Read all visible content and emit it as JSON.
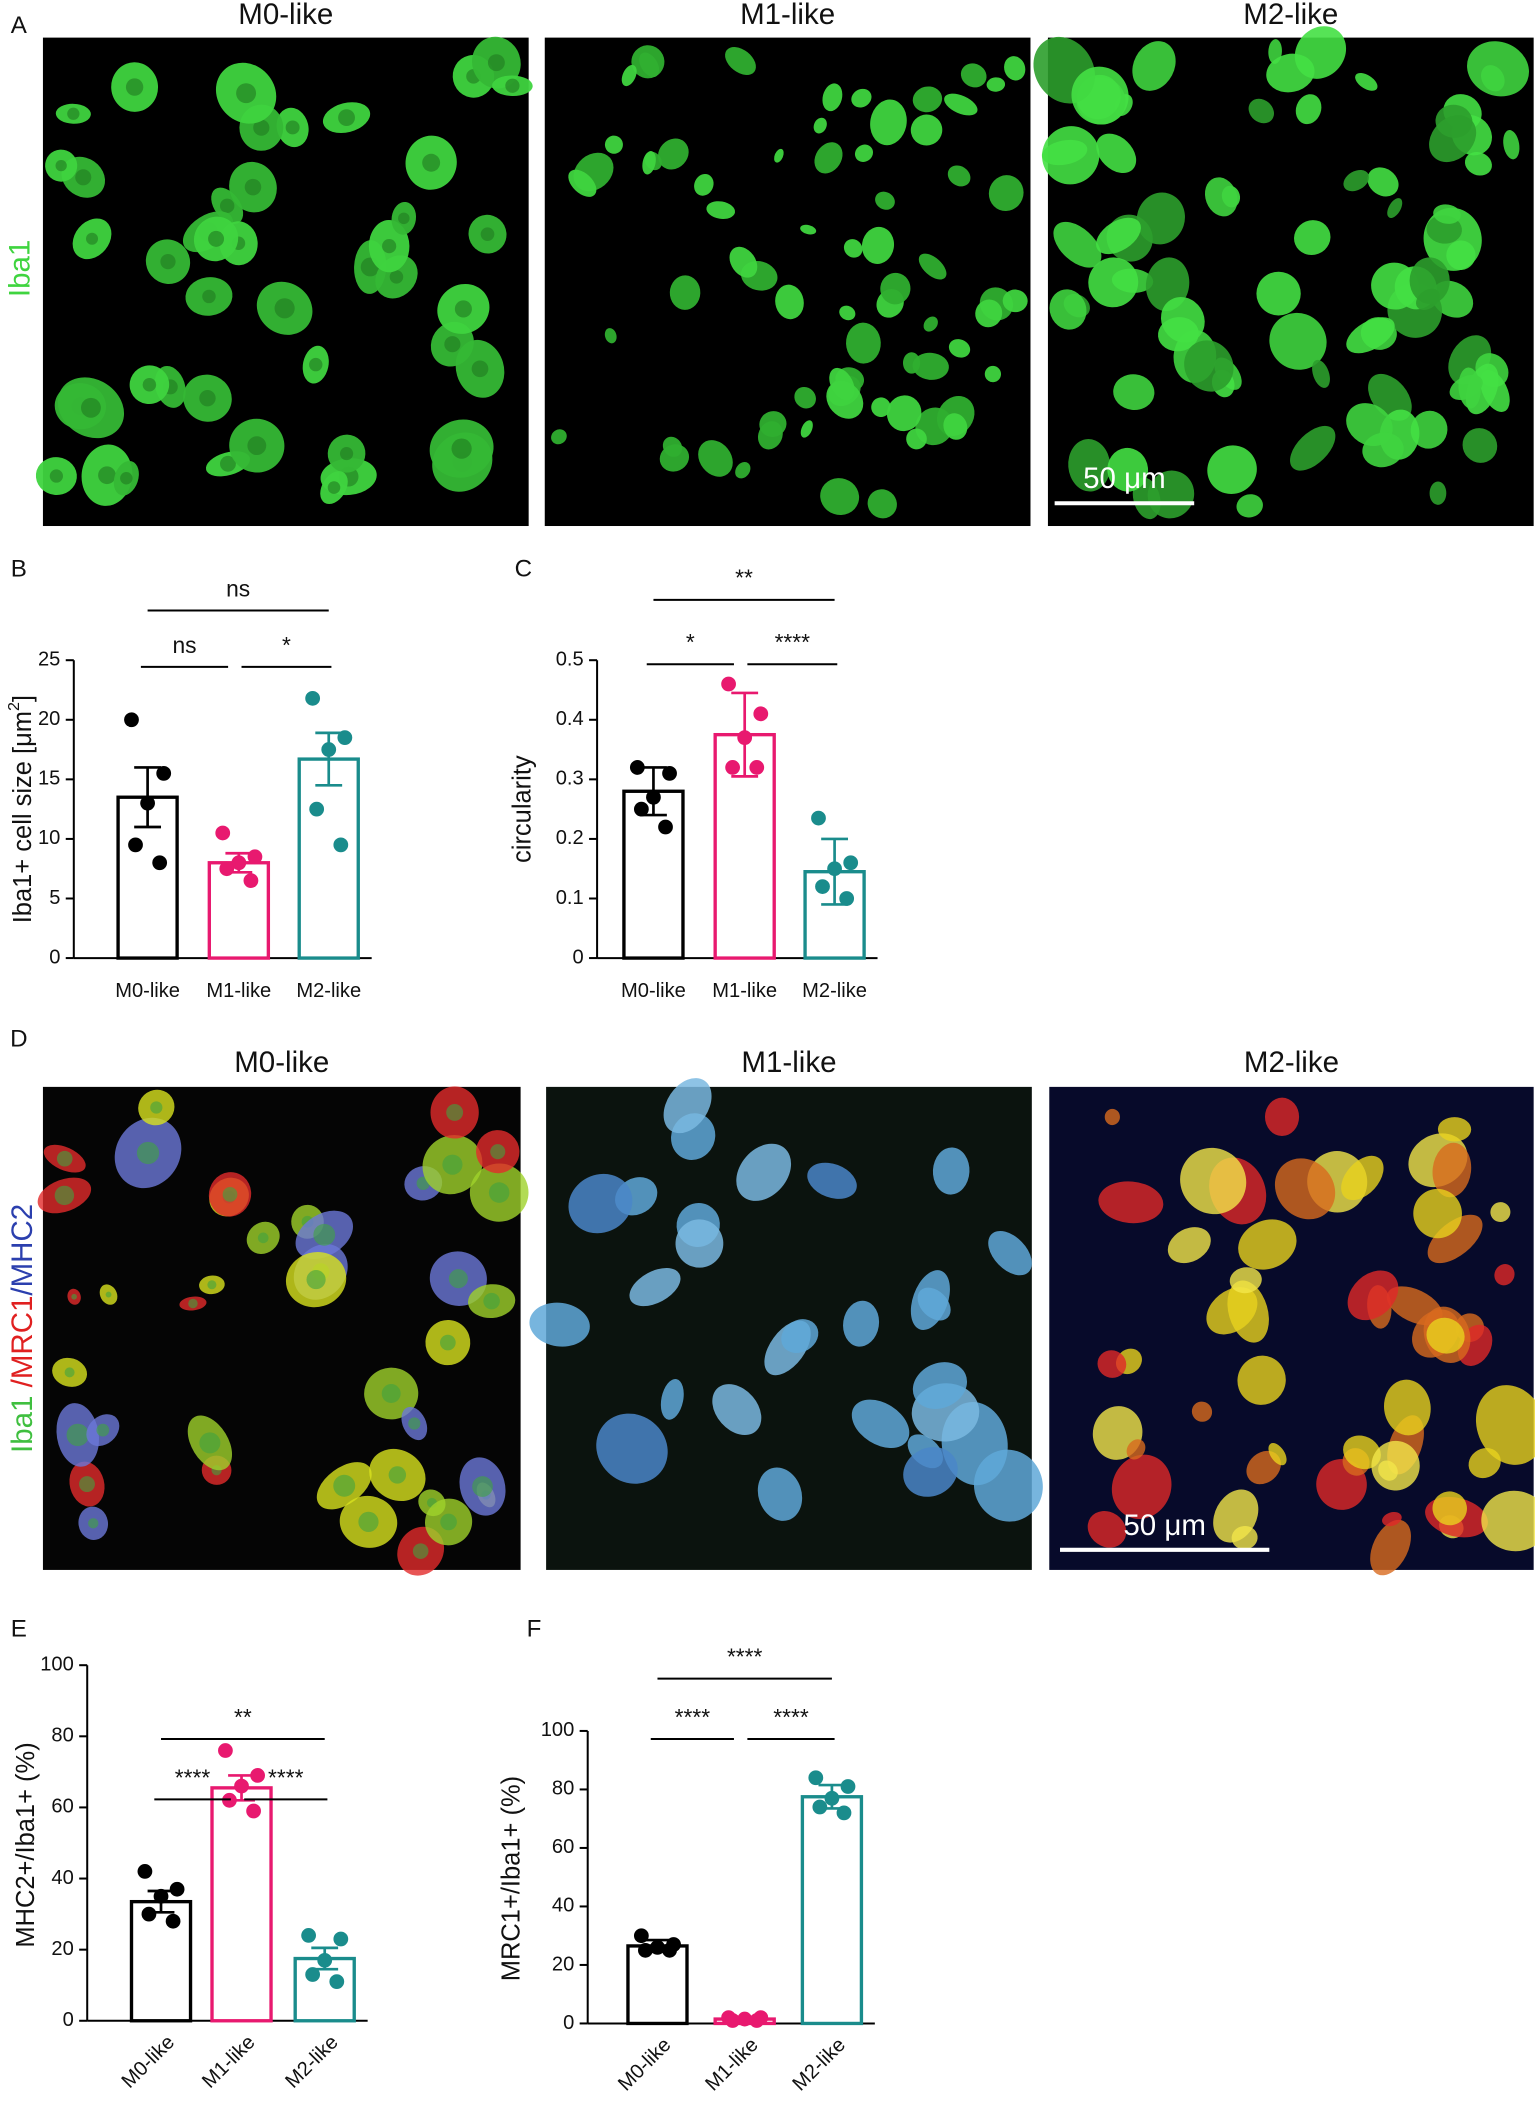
{
  "panel_labels": [
    "A",
    "B",
    "C",
    "D",
    "E",
    "F"
  ],
  "panel_a": {
    "titles": [
      "M0-like",
      "M1-like",
      "M2-like"
    ],
    "stain_label": "Iba1",
    "scale_bar": "50 μm"
  },
  "panel_d": {
    "titles": [
      "M0-like",
      "M1-like",
      "M2-like"
    ],
    "stain_label": [
      "Iba1",
      " /MRC1",
      "/MHC2"
    ],
    "scale_bar": "50 μm"
  },
  "chart_data": [
    {
      "type": "bar",
      "categories": [
        "M0-like",
        "M1-like",
        "M2-like"
      ],
      "colors": [
        "#000000",
        "#e8196f",
        "#1a8c8c"
      ],
      "values": [
        13.5,
        8,
        16.7
      ],
      "errors": [
        2.5,
        0.8,
        2.2
      ],
      "points": [
        [
          20,
          15.5,
          13,
          9.5,
          8
        ],
        [
          10.5,
          8.5,
          8,
          7.5,
          6.5
        ],
        [
          21.8,
          18.5,
          17.5,
          12.5,
          9.5
        ]
      ],
      "ylim": [
        0,
        25
      ],
      "yticks": [
        0,
        5,
        10,
        15,
        20,
        25
      ],
      "ylabel": [
        "Iba1+ cell size [μm",
        "2",
        "]"
      ],
      "annotations": [
        "ns",
        "ns",
        "*"
      ]
    },
    {
      "type": "bar",
      "categories": [
        "M0-like",
        "M1-like",
        "M2-like"
      ],
      "colors": [
        "#000000",
        "#e8196f",
        "#1a8c8c"
      ],
      "values": [
        0.28,
        0.375,
        0.145
      ],
      "errors": [
        0.04,
        0.07,
        0.055
      ],
      "points": [
        [
          0.32,
          0.31,
          0.27,
          0.25,
          0.22
        ],
        [
          0.46,
          0.41,
          0.37,
          0.32,
          0.32
        ],
        [
          0.235,
          0.16,
          0.15,
          0.12,
          0.1
        ]
      ],
      "ylim": [
        0,
        0.5
      ],
      "yticks": [
        0,
        0.1,
        0.2,
        0.3,
        0.4,
        0.5
      ],
      "ylabel": [
        "circularity"
      ],
      "annotations": [
        "**",
        "*",
        "****"
      ]
    },
    {
      "type": "bar",
      "categories": [
        "M0-like",
        "M1-like",
        "M2-like"
      ],
      "colors": [
        "#000000",
        "#e8196f",
        "#1a8c8c"
      ],
      "values": [
        33.5,
        65.5,
        17.5
      ],
      "errors": [
        3,
        3.5,
        3
      ],
      "points": [
        [
          42,
          37,
          35,
          30,
          28
        ],
        [
          76,
          69,
          66,
          62,
          59
        ],
        [
          24,
          23,
          17,
          13,
          11
        ]
      ],
      "ylim": [
        0,
        100
      ],
      "yticks": [
        0,
        20,
        40,
        60,
        80,
        100
      ],
      "ylabel": [
        "MHC2+/Iba1+ (%)"
      ],
      "annotations": [
        "**",
        "****",
        "****"
      ]
    },
    {
      "type": "bar",
      "categories": [
        "M0-like",
        "M1-like",
        "M2-like"
      ],
      "colors": [
        "#000000",
        "#e8196f",
        "#1a8c8c"
      ],
      "values": [
        26.5,
        1.5,
        77.5
      ],
      "errors": [
        2,
        0.5,
        4
      ],
      "points": [
        [
          30,
          27,
          26,
          25,
          25
        ],
        [
          2,
          2,
          1.5,
          1,
          1
        ],
        [
          84,
          81,
          77,
          74,
          72
        ]
      ],
      "ylim": [
        0,
        100
      ],
      "yticks": [
        0,
        20,
        40,
        60,
        80,
        100
      ],
      "ylabel": [
        "MRC1+/Iba1+ (%)"
      ],
      "annotations": [
        "****",
        "****",
        "****"
      ]
    }
  ]
}
